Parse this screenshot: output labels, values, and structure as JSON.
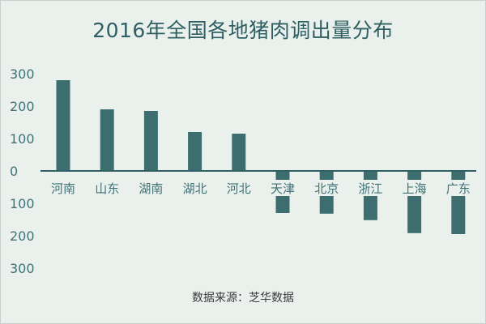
{
  "chart_data": {
    "type": "bar",
    "title": "2016年全国各地猪肉调出量分布",
    "source": "数据来源：芝华数据",
    "categories": [
      "河南",
      "山东",
      "湖南",
      "湖北",
      "河北",
      "天津",
      "北京",
      "浙江",
      "上海",
      "广东"
    ],
    "values": [
      280,
      190,
      185,
      120,
      115,
      -130,
      -132,
      -152,
      -192,
      -195
    ],
    "ylim": [
      -300,
      300
    ],
    "yticks": [
      300,
      200,
      100,
      0,
      -100,
      -200,
      -300
    ],
    "ytick_labels": [
      "300",
      "200",
      "100",
      "0",
      "100",
      "200",
      "300"
    ],
    "grid": false,
    "colors": {
      "bar": "#3d6e6f",
      "axis": "#2f5f63",
      "label": "#3f7276",
      "background": "#eaf1ed"
    }
  }
}
